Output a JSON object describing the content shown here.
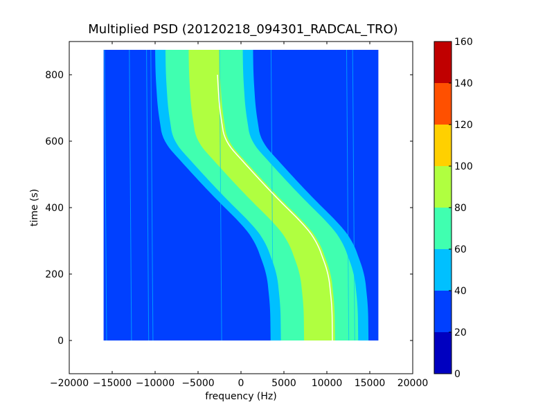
{
  "chart_data": {
    "type": "heatmap",
    "title": "Multiplied PSD (20120218_094301_RADCAL_TRO)",
    "xlabel": "frequency (Hz)",
    "ylabel": "time (s)",
    "xlim": [
      -20000,
      20000
    ],
    "ylim": [
      -100,
      900
    ],
    "xticks": [
      -20000,
      -15000,
      -10000,
      -5000,
      0,
      5000,
      10000,
      15000,
      20000
    ],
    "yticks": [
      0,
      200,
      400,
      600,
      800
    ],
    "data_extent": {
      "freq": [
        -16000,
        16000
      ],
      "time": [
        0,
        875
      ]
    },
    "background_level": "20-40",
    "colorbar": {
      "levels": [
        0,
        20,
        40,
        60,
        80,
        100,
        120,
        140,
        160
      ],
      "colors": [
        "#0000c0",
        "#0040ff",
        "#00c0ff",
        "#40ffb0",
        "#b0ff40",
        "#ffd000",
        "#ff5000",
        "#c00000"
      ]
    },
    "doppler_track": {
      "time": [
        875,
        800,
        700,
        600,
        500,
        450,
        400,
        350,
        300,
        200,
        100,
        0
      ],
      "freq": [
        -2800,
        -2750,
        -2500,
        -1900,
        1600,
        3400,
        5300,
        7300,
        8800,
        10200,
        10600,
        10650
      ]
    },
    "band_halfwidths_hz": {
      "40-60": 5700,
      "60-80": 4500,
      "80-100": 1800
    },
    "band_offset_hz": -1500,
    "faint_lines_freq": [
      -15900,
      -13000,
      -11000,
      -10500,
      -2500,
      3500,
      12300,
      13000
    ]
  }
}
